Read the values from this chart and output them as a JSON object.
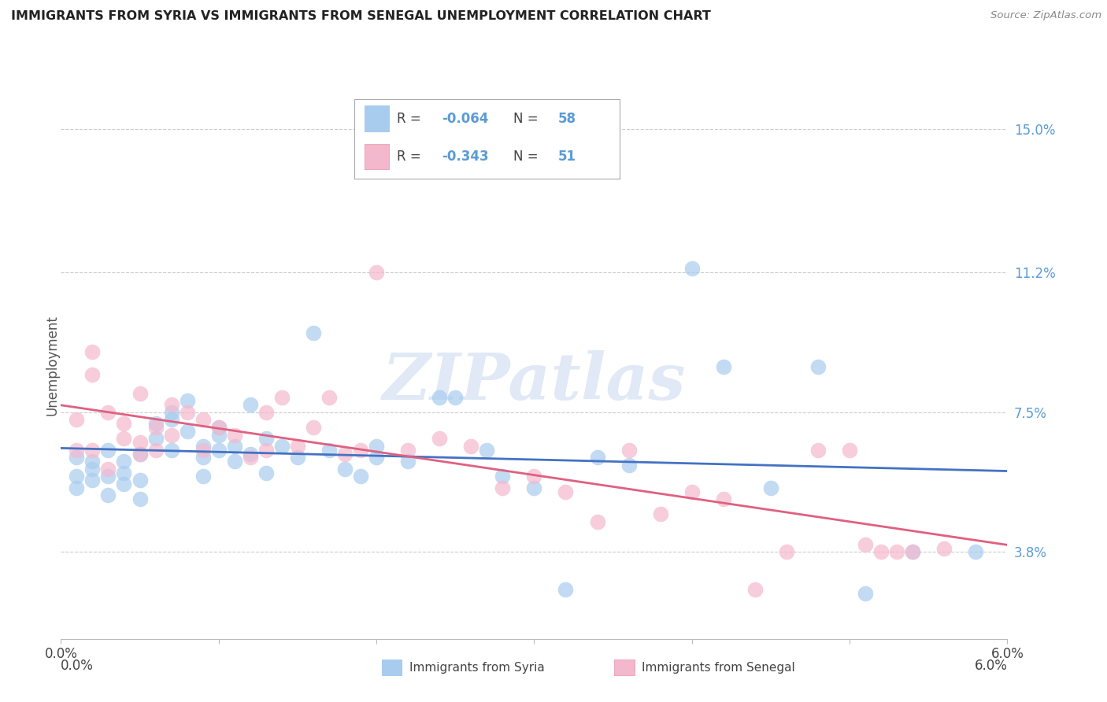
{
  "title": "IMMIGRANTS FROM SYRIA VS IMMIGRANTS FROM SENEGAL UNEMPLOYMENT CORRELATION CHART",
  "source": "Source: ZipAtlas.com",
  "ylabel": "Unemployment",
  "xlim": [
    0.0,
    0.06
  ],
  "ylim": [
    0.015,
    0.16
  ],
  "xticks": [
    0.0,
    0.01,
    0.02,
    0.03,
    0.04,
    0.05,
    0.06
  ],
  "xticklabels": [
    "0.0%",
    "",
    "",
    "",
    "",
    "",
    "6.0%"
  ],
  "ytick_positions": [
    0.038,
    0.075,
    0.112,
    0.15
  ],
  "ytick_labels": [
    "3.8%",
    "7.5%",
    "11.2%",
    "15.0%"
  ],
  "syria_color": "#a8ccee",
  "senegal_color": "#f4b8cc",
  "syria_line_color": "#4472c4",
  "senegal_line_color": "#e06080",
  "syria_R": -0.064,
  "syria_N": 58,
  "senegal_R": -0.343,
  "senegal_N": 51,
  "background_color": "#ffffff",
  "grid_color": "#cccccc",
  "watermark": "ZIPatlas",
  "legend_text_color": "#5b9bd5",
  "title_color": "#222222",
  "ylabel_color": "#555555",
  "source_color": "#888888",
  "syria_x": [
    0.001,
    0.001,
    0.001,
    0.002,
    0.002,
    0.002,
    0.003,
    0.003,
    0.003,
    0.004,
    0.004,
    0.004,
    0.005,
    0.005,
    0.005,
    0.006,
    0.006,
    0.007,
    0.007,
    0.007,
    0.008,
    0.008,
    0.009,
    0.009,
    0.009,
    0.01,
    0.01,
    0.01,
    0.011,
    0.011,
    0.012,
    0.012,
    0.013,
    0.013,
    0.014,
    0.015,
    0.016,
    0.017,
    0.018,
    0.019,
    0.02,
    0.02,
    0.022,
    0.024,
    0.025,
    0.027,
    0.028,
    0.03,
    0.032,
    0.034,
    0.036,
    0.04,
    0.042,
    0.045,
    0.048,
    0.051,
    0.054,
    0.058
  ],
  "syria_y": [
    0.058,
    0.063,
    0.055,
    0.062,
    0.057,
    0.06,
    0.065,
    0.058,
    0.053,
    0.059,
    0.056,
    0.062,
    0.057,
    0.064,
    0.052,
    0.068,
    0.072,
    0.075,
    0.073,
    0.065,
    0.078,
    0.07,
    0.063,
    0.058,
    0.066,
    0.065,
    0.069,
    0.071,
    0.066,
    0.062,
    0.077,
    0.064,
    0.059,
    0.068,
    0.066,
    0.063,
    0.096,
    0.065,
    0.06,
    0.058,
    0.063,
    0.066,
    0.062,
    0.079,
    0.079,
    0.065,
    0.058,
    0.055,
    0.028,
    0.063,
    0.061,
    0.113,
    0.087,
    0.055,
    0.087,
    0.027,
    0.038,
    0.038
  ],
  "senegal_x": [
    0.001,
    0.001,
    0.002,
    0.002,
    0.002,
    0.003,
    0.003,
    0.004,
    0.004,
    0.005,
    0.005,
    0.005,
    0.006,
    0.006,
    0.007,
    0.007,
    0.008,
    0.009,
    0.009,
    0.01,
    0.011,
    0.012,
    0.013,
    0.013,
    0.014,
    0.015,
    0.016,
    0.017,
    0.018,
    0.019,
    0.02,
    0.022,
    0.024,
    0.026,
    0.028,
    0.03,
    0.032,
    0.034,
    0.036,
    0.038,
    0.04,
    0.042,
    0.044,
    0.046,
    0.048,
    0.05,
    0.051,
    0.052,
    0.053,
    0.054,
    0.056
  ],
  "senegal_y": [
    0.065,
    0.073,
    0.091,
    0.085,
    0.065,
    0.06,
    0.075,
    0.068,
    0.072,
    0.064,
    0.067,
    0.08,
    0.071,
    0.065,
    0.069,
    0.077,
    0.075,
    0.073,
    0.065,
    0.071,
    0.069,
    0.063,
    0.075,
    0.065,
    0.079,
    0.066,
    0.071,
    0.079,
    0.064,
    0.065,
    0.112,
    0.065,
    0.068,
    0.066,
    0.055,
    0.058,
    0.054,
    0.046,
    0.065,
    0.048,
    0.054,
    0.052,
    0.028,
    0.038,
    0.065,
    0.065,
    0.04,
    0.038,
    0.038,
    0.038,
    0.039
  ]
}
